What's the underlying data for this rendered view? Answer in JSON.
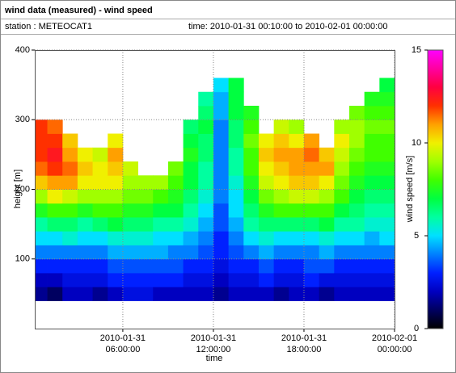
{
  "chart_data": {
    "type": "heatmap",
    "title": "wind data (measured) - wind speed",
    "station": "station : METEOCAT1",
    "period": "time: 2010-01-31 00:10:00 to 2010-02-01 00:00:00",
    "xlabel": "time",
    "ylabel": "height [m]",
    "zlabel": "wind speed [m/s]",
    "xlim": [
      0.1667,
      24
    ],
    "xticks": [
      {
        "value": 6,
        "label": [
          "2010-01-31",
          "06:00:00"
        ]
      },
      {
        "value": 12,
        "label": [
          "2010-01-31",
          "12:00:00"
        ]
      },
      {
        "value": 18,
        "label": [
          "2010-01-31",
          "18:00:00"
        ]
      },
      {
        "value": 24,
        "label": [
          "2010-02-01",
          "00:00:00"
        ]
      }
    ],
    "ylim": [
      0,
      400
    ],
    "yticks": [
      100,
      200,
      300,
      400
    ],
    "zlim": [
      0,
      15
    ],
    "zticks": [
      0,
      5,
      10,
      15
    ],
    "grid": true,
    "colormap": [
      "#000000",
      "#000060",
      "#0000c0",
      "#0020ff",
      "#0080ff",
      "#00e0ff",
      "#00ffa0",
      "#00ff40",
      "#40ff00",
      "#a0ff00",
      "#f0f000",
      "#ffa000",
      "#ff3000",
      "#ff0040",
      "#ff00a0",
      "#ff00ff"
    ],
    "xbins": [
      0.1667,
      1,
      2,
      3,
      4,
      5,
      6,
      7,
      8,
      9,
      10,
      11,
      12,
      13,
      14,
      15,
      16,
      17,
      18,
      19,
      20,
      21,
      22,
      23,
      24
    ],
    "ybins": [
      40,
      60,
      80,
      100,
      120,
      140,
      160,
      180,
      200,
      220,
      240,
      260,
      280,
      300,
      320,
      340,
      360
    ],
    "values": [
      [
        1.5,
        2,
        3,
        4,
        5,
        6,
        7.5,
        9,
        10.5,
        11.5,
        12,
        12,
        12,
        null,
        null,
        null
      ],
      [
        1,
        2,
        3,
        4,
        5,
        6.5,
        8,
        10,
        11,
        12,
        12.5,
        12,
        11.5,
        null,
        null,
        null
      ],
      [
        2,
        2.5,
        3,
        4,
        5.5,
        6.5,
        8,
        9.5,
        11,
        11.5,
        11,
        10.5,
        null,
        null,
        null,
        null
      ],
      [
        2,
        2.5,
        3,
        4,
        5,
        6,
        7.5,
        9,
        10,
        10.5,
        10,
        null,
        null,
        null,
        null,
        null
      ],
      [
        1.5,
        2.5,
        3,
        4,
        5,
        6.5,
        8,
        9,
        10,
        10,
        9.5,
        null,
        null,
        null,
        null,
        null
      ],
      [
        2,
        3,
        3.5,
        4.5,
        5.5,
        7,
        8,
        9,
        10,
        10.5,
        11,
        10,
        null,
        null,
        null,
        null
      ],
      [
        2.5,
        3,
        3.5,
        4.5,
        5.5,
        6.5,
        7.5,
        8.5,
        9,
        9.5,
        null,
        null,
        null,
        null,
        null,
        null
      ],
      [
        2.5,
        3,
        3.5,
        4.5,
        5.5,
        6.5,
        7.5,
        8.5,
        9,
        null,
        null,
        null,
        null,
        null,
        null,
        null
      ],
      [
        2,
        3,
        3.5,
        4.5,
        5,
        6,
        7,
        8,
        9,
        null,
        null,
        null,
        null,
        null,
        null,
        null
      ],
      [
        2,
        3,
        3.5,
        4,
        5,
        6,
        7,
        7.5,
        8,
        8.5,
        null,
        null,
        null,
        null,
        null,
        null
      ],
      [
        2,
        2.5,
        3,
        4,
        4.5,
        5.5,
        6,
        6.5,
        7,
        7,
        7.5,
        7,
        6.5,
        null,
        null,
        null
      ],
      [
        2,
        2.5,
        3,
        3.5,
        4,
        4.5,
        5,
        5.5,
        6,
        6,
        6.5,
        6.5,
        7,
        6.5,
        6,
        null
      ],
      [
        1.5,
        2,
        2.5,
        3,
        3,
        3.5,
        3.5,
        4,
        4,
        4,
        4,
        4,
        4,
        4.5,
        4.5,
        5
      ],
      [
        2,
        2.5,
        3,
        3.5,
        4,
        4.5,
        5,
        5,
        5.5,
        6,
        6,
        6.5,
        6.5,
        7,
        7,
        7
      ],
      [
        2,
        2.5,
        3,
        4,
        5,
        6,
        6.5,
        7,
        7.5,
        8,
        8,
        8.5,
        8,
        7.5,
        null,
        null
      ],
      [
        2,
        3,
        3.5,
        4.5,
        5.5,
        6.5,
        7.5,
        8.5,
        9.5,
        10,
        10.5,
        10,
        null,
        null,
        null,
        null
      ],
      [
        1.5,
        2.5,
        3,
        4,
        5,
        6.5,
        8,
        9,
        10,
        10.5,
        11,
        10.5,
        9.5,
        null,
        null,
        null
      ],
      [
        2,
        2.5,
        3,
        4,
        5,
        6.5,
        8,
        9.5,
        10.5,
        11,
        11,
        10,
        9,
        null,
        null,
        null
      ],
      [
        2,
        3,
        3.5,
        4,
        5,
        6.5,
        8,
        9.5,
        10.5,
        11,
        11.5,
        11,
        null,
        null,
        null,
        null
      ],
      [
        1.5,
        2.5,
        3.5,
        4.5,
        5.5,
        7,
        8,
        9,
        10,
        11,
        10.5,
        null,
        null,
        null,
        null,
        null
      ],
      [
        2,
        2.5,
        3,
        4,
        5,
        6,
        7,
        8,
        8.5,
        9,
        9.5,
        10,
        9,
        null,
        null,
        null
      ],
      [
        2,
        2.5,
        3,
        4,
        5,
        6,
        6.5,
        7,
        7.5,
        8,
        8.5,
        9,
        9,
        8.5,
        null,
        null
      ],
      [
        2,
        2.5,
        3,
        4,
        4.5,
        5.5,
        6,
        6.5,
        7,
        7.5,
        8,
        8,
        8.5,
        8,
        7.5,
        null
      ],
      [
        2,
        2.5,
        3,
        4,
        5,
        5.5,
        6,
        6.5,
        7,
        7.5,
        8,
        8,
        8.5,
        8,
        7.5,
        7
      ]
    ]
  }
}
